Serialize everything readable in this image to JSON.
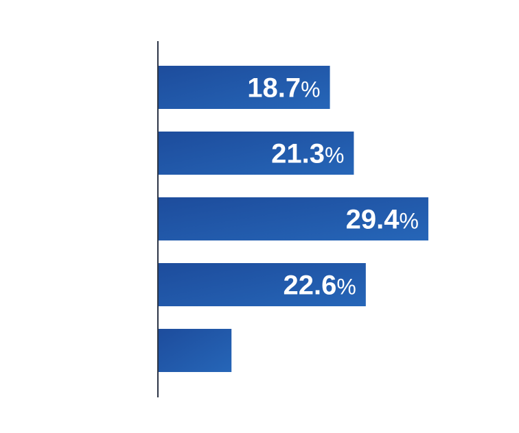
{
  "chart_data": {
    "type": "barh",
    "values": [
      18.7,
      21.3,
      29.4,
      22.6,
      8.0
    ],
    "value_labels": [
      "18.7%",
      "21.3%",
      "29.4%",
      "22.6%",
      null
    ],
    "color": "#2158a8",
    "xlim": [
      0,
      30
    ]
  }
}
